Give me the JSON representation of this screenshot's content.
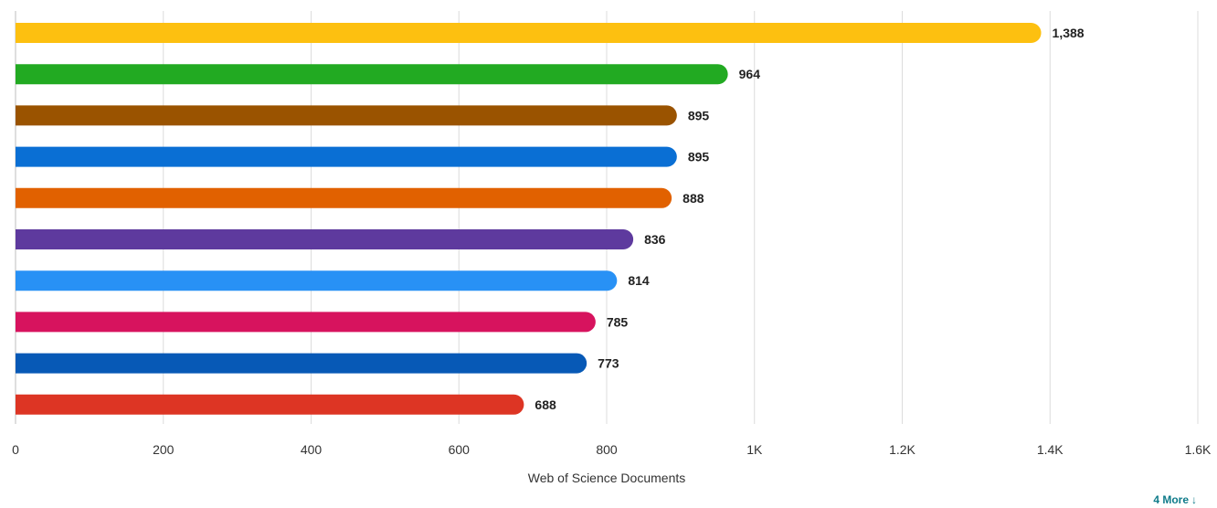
{
  "chart_data": {
    "type": "bar",
    "orientation": "horizontal",
    "values": [
      1388,
      964,
      895,
      895,
      888,
      836,
      814,
      785,
      773,
      688
    ],
    "value_labels": [
      "1,388",
      "964",
      "895",
      "895",
      "888",
      "836",
      "814",
      "785",
      "773",
      "688"
    ],
    "colors": [
      "#FDC010",
      "#22AA22",
      "#9A5300",
      "#0A6FD4",
      "#E16100",
      "#5E3A9E",
      "#2891F5",
      "#D7135E",
      "#0759B6",
      "#DD3524"
    ],
    "xlabel": "Web of Science Documents",
    "xlim": [
      0,
      1600
    ],
    "x_ticks": [
      0,
      200,
      400,
      600,
      800,
      1000,
      1200,
      1400,
      1600
    ],
    "x_tick_labels": [
      "0",
      "200",
      "400",
      "600",
      "800",
      "1K",
      "1.2K",
      "1.4K",
      "1.6K"
    ],
    "grid": true
  },
  "more_link": {
    "label": "4 More",
    "icon": "arrow-down-icon",
    "arrow": "↓"
  }
}
